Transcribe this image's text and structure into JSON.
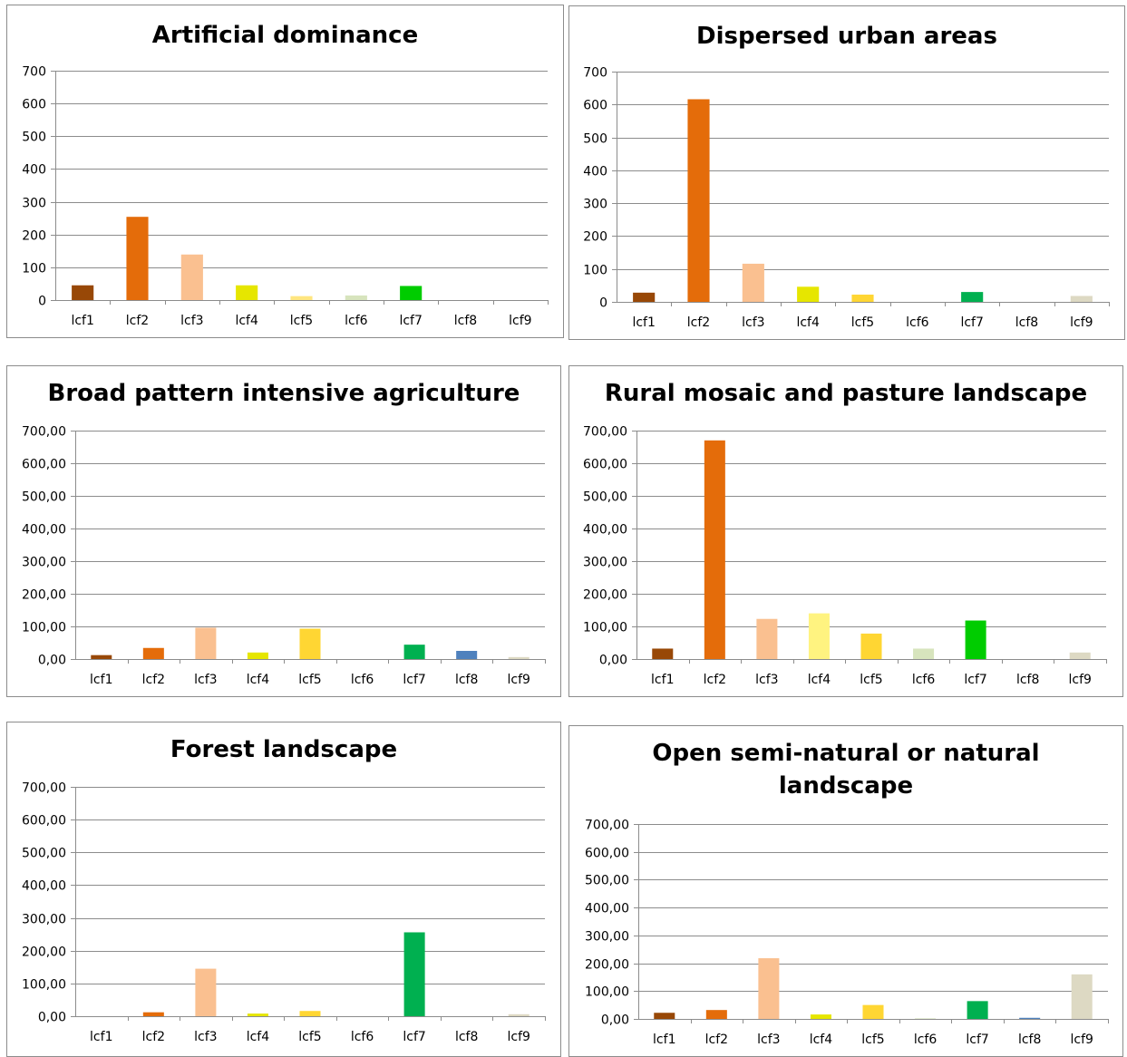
{
  "chart_data": [
    {
      "type": "bar",
      "title": "Artificial dominance",
      "categories": [
        "lcf1",
        "lcf2",
        "lcf3",
        "lcf4",
        "lcf5",
        "lcf6",
        "lcf7",
        "lcf8",
        "lcf9"
      ],
      "values": [
        45,
        254,
        139,
        45,
        12,
        14,
        43,
        0,
        0
      ],
      "colors": [
        "#984807",
        "#e46c0a",
        "#fac090",
        "#e6e600",
        "#ffe680",
        "#d7e4bd",
        "#00cc00",
        "#4f81bd",
        "#ddd9c3"
      ],
      "yticks": [
        "0",
        "100",
        "200",
        "300",
        "400",
        "500",
        "600",
        "700"
      ],
      "ylim": [
        0,
        700
      ],
      "grid": true
    },
    {
      "type": "bar",
      "title": "Dispersed urban areas",
      "categories": [
        "lcf1",
        "lcf2",
        "lcf3",
        "lcf4",
        "lcf5",
        "lcf6",
        "lcf7",
        "lcf8",
        "lcf9"
      ],
      "values": [
        28,
        616,
        116,
        46,
        22,
        0,
        30,
        0,
        18
      ],
      "colors": [
        "#984807",
        "#e46c0a",
        "#fac090",
        "#e6e600",
        "#ffd633",
        "#d7e4bd",
        "#00b050",
        "#4f81bd",
        "#ddd9c3"
      ],
      "yticks": [
        "0",
        "100",
        "200",
        "300",
        "400",
        "500",
        "600",
        "700"
      ],
      "ylim": [
        0,
        700
      ],
      "grid": true
    },
    {
      "type": "bar",
      "title": "Broad pattern intensive agriculture",
      "categories": [
        "lcf1",
        "lcf2",
        "lcf3",
        "lcf4",
        "lcf5",
        "lcf6",
        "lcf7",
        "lcf8",
        "lcf9"
      ],
      "values": [
        12,
        34,
        96,
        20,
        93,
        0,
        44,
        25,
        6
      ],
      "colors": [
        "#984807",
        "#e46c0a",
        "#fac090",
        "#e6e600",
        "#ffd633",
        "#d7e4bd",
        "#00b050",
        "#4f81bd",
        "#ddd9c3"
      ],
      "yticks": [
        "0,00",
        "100,00",
        "200,00",
        "300,00",
        "400,00",
        "500,00",
        "600,00",
        "700,00"
      ],
      "ylim": [
        0,
        700
      ],
      "grid": true
    },
    {
      "type": "bar",
      "title": "Rural mosaic and pasture landscape",
      "categories": [
        "lcf1",
        "lcf2",
        "lcf3",
        "lcf4",
        "lcf5",
        "lcf6",
        "lcf7",
        "lcf8",
        "lcf9"
      ],
      "values": [
        32,
        670,
        123,
        140,
        78,
        32,
        118,
        0,
        20
      ],
      "colors": [
        "#984807",
        "#e46c0a",
        "#fac090",
        "#fff380",
        "#ffd633",
        "#d7e4bd",
        "#00cc00",
        "#4f81bd",
        "#ddd9c3"
      ],
      "yticks": [
        "0,00",
        "100,00",
        "200,00",
        "300,00",
        "400,00",
        "500,00",
        "600,00",
        "700,00"
      ],
      "ylim": [
        0,
        700
      ],
      "grid": true
    },
    {
      "type": "bar",
      "title": "Forest landscape",
      "categories": [
        "lcf1",
        "lcf2",
        "lcf3",
        "lcf4",
        "lcf5",
        "lcf6",
        "lcf7",
        "lcf8",
        "lcf9"
      ],
      "values": [
        0,
        12,
        145,
        8,
        16,
        0,
        256,
        0,
        6
      ],
      "colors": [
        "#984807",
        "#e46c0a",
        "#fac090",
        "#e6e600",
        "#ffd633",
        "#d7e4bd",
        "#00b050",
        "#4f81bd",
        "#ddd9c3"
      ],
      "yticks": [
        "0,00",
        "100,00",
        "200,00",
        "300,00",
        "400,00",
        "500,00",
        "600,00",
        "700,00"
      ],
      "ylim": [
        0,
        700
      ],
      "grid": true
    },
    {
      "type": "bar",
      "title": "Open semi-natural or natural landscape",
      "title_lines": [
        "Open semi-natural or natural",
        "landscape"
      ],
      "categories": [
        "lcf1",
        "lcf2",
        "lcf3",
        "lcf4",
        "lcf5",
        "lcf6",
        "lcf7",
        "lcf8",
        "lcf9"
      ],
      "values": [
        22,
        32,
        218,
        16,
        50,
        2,
        64,
        4,
        160
      ],
      "colors": [
        "#984807",
        "#e46c0a",
        "#fac090",
        "#e6e600",
        "#ffd633",
        "#d7e4bd",
        "#00b050",
        "#4f81bd",
        "#ddd9c3"
      ],
      "yticks": [
        "0,00",
        "100,00",
        "200,00",
        "300,00",
        "400,00",
        "500,00",
        "600,00",
        "700,00"
      ],
      "ylim": [
        0,
        700
      ],
      "grid": true
    }
  ]
}
